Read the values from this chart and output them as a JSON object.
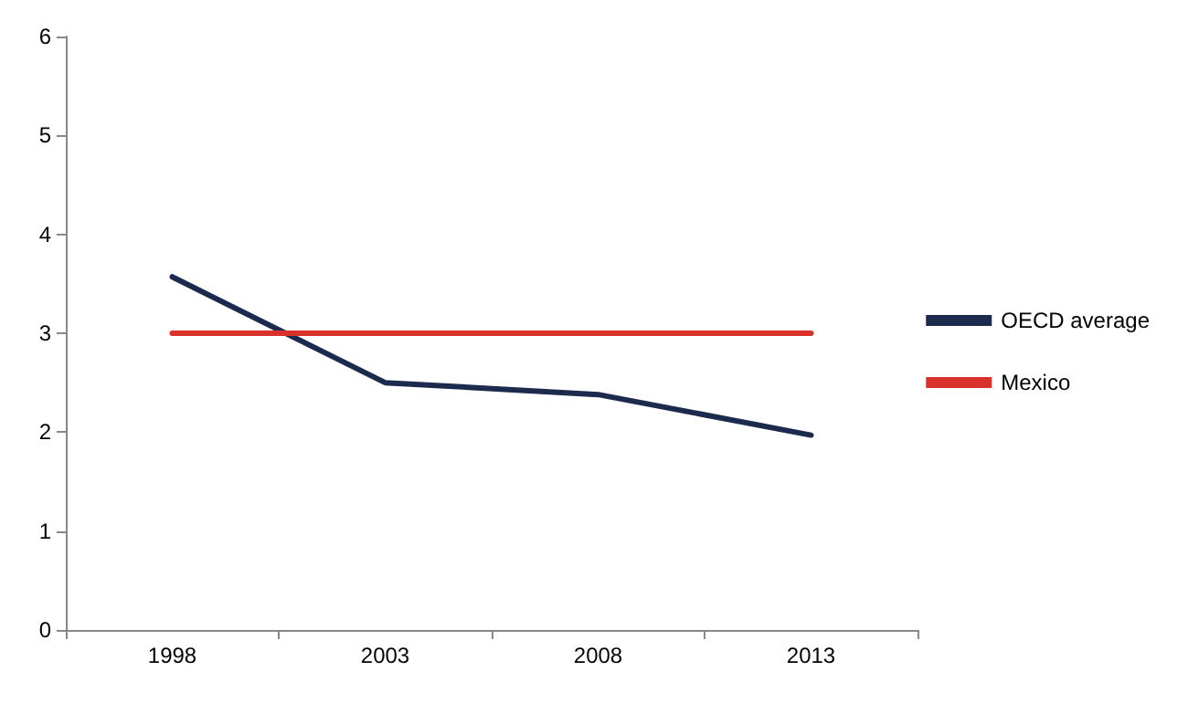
{
  "chart_data": {
    "type": "line",
    "categories": [
      "1998",
      "2003",
      "2008",
      "2013"
    ],
    "series": [
      {
        "name": "OECD average",
        "color": "#1c2a4e",
        "values": [
          3.57,
          2.5,
          2.38,
          1.97
        ]
      },
      {
        "name": "Mexico",
        "color": "#d9312b",
        "values": [
          3,
          3,
          3,
          3
        ]
      }
    ],
    "ylim": [
      0,
      6
    ],
    "yticks": [
      0,
      1,
      2,
      3,
      4,
      5,
      6
    ],
    "grid": false,
    "legend": "right",
    "marker": "none",
    "line_style": "solid"
  }
}
